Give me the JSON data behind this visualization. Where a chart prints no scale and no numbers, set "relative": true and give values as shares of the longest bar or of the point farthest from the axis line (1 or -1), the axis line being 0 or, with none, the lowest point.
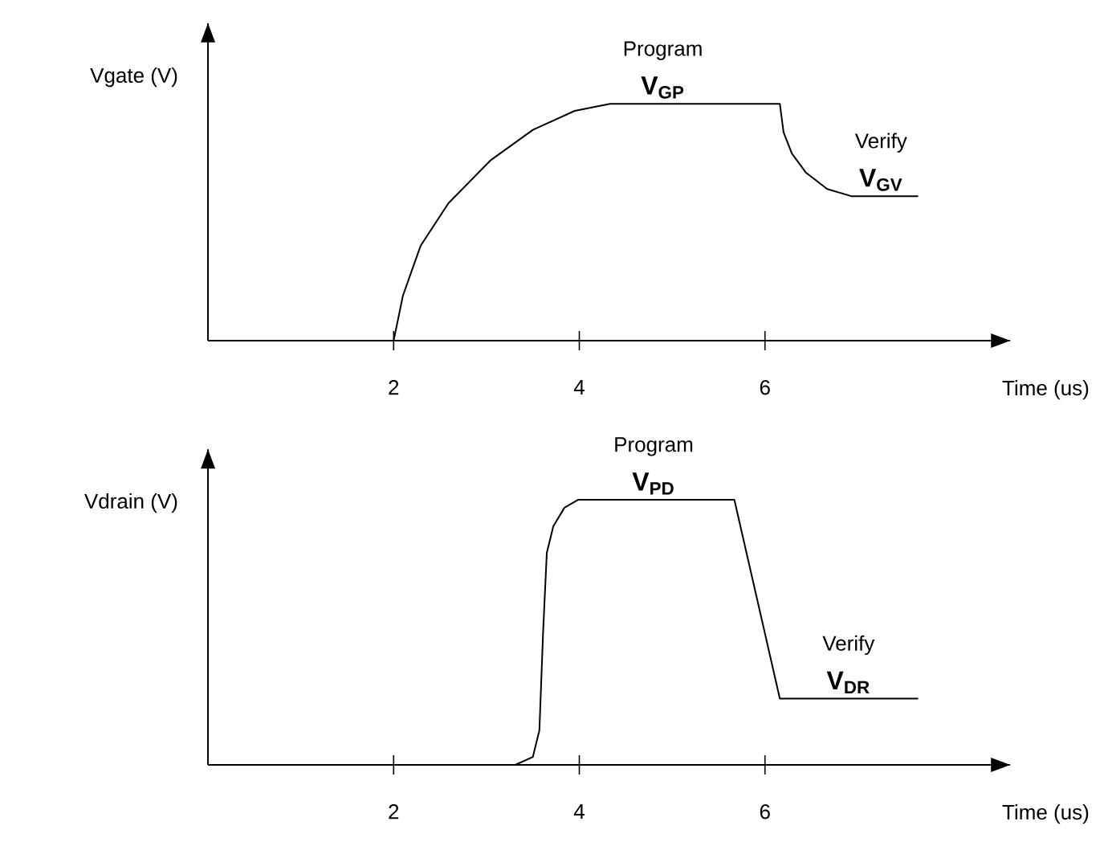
{
  "chart_data": [
    {
      "type": "line",
      "relative": true,
      "ylabel": "Vgate (V)",
      "xlabel": "Time (us)",
      "xlim": [
        0,
        8.64
      ],
      "xticks": [
        2,
        4,
        6
      ],
      "tick_labels": "x",
      "series": [
        {
          "color": "#000000",
          "x": [
            0,
            2,
            2.1,
            2.29,
            2.59,
            3.04,
            3.5,
            3.95,
            4.33,
            6.16,
            6.2,
            6.29,
            6.44,
            6.67,
            6.93,
            7.65
          ],
          "values": [
            0,
            0,
            0.19,
            0.4,
            0.58,
            0.76,
            0.89,
            0.97,
            1,
            1,
            0.88,
            0.79,
            0.71,
            0.64,
            0.61,
            0.61
          ]
        }
      ],
      "annotations": [
        "Program",
        {
          "text": "V$_{GP}$",
          "x": 4.9,
          "y": 1
        },
        "Verify",
        {
          "text": "V$_{GV}$",
          "x": 7.25,
          "y": 0.61
        }
      ]
    },
    {
      "type": "line",
      "relative": true,
      "ylabel": "Vdrain (V)",
      "xlabel": "Time (us)",
      "xlim": [
        0,
        8.64
      ],
      "xticks": [
        2,
        4,
        6
      ],
      "tick_labels": "x",
      "series": [
        {
          "color": "#000000",
          "x": [
            0,
            3.31,
            3.5,
            3.57,
            3.61,
            3.65,
            3.72,
            3.84,
            3.99,
            5.67,
            6.16,
            7.65
          ],
          "values": [
            0,
            0,
            0.03,
            0.13,
            0.5,
            0.8,
            0.9,
            0.97,
            1,
            1,
            0.25,
            0.25
          ]
        }
      ],
      "annotations": [
        "Program",
        {
          "text": "V$_{PD}$",
          "x": 4.8,
          "y": 1
        },
        "Verify",
        {
          "text": "V$_{DR}$",
          "x": 6.9,
          "y": 0.25
        }
      ]
    }
  ]
}
